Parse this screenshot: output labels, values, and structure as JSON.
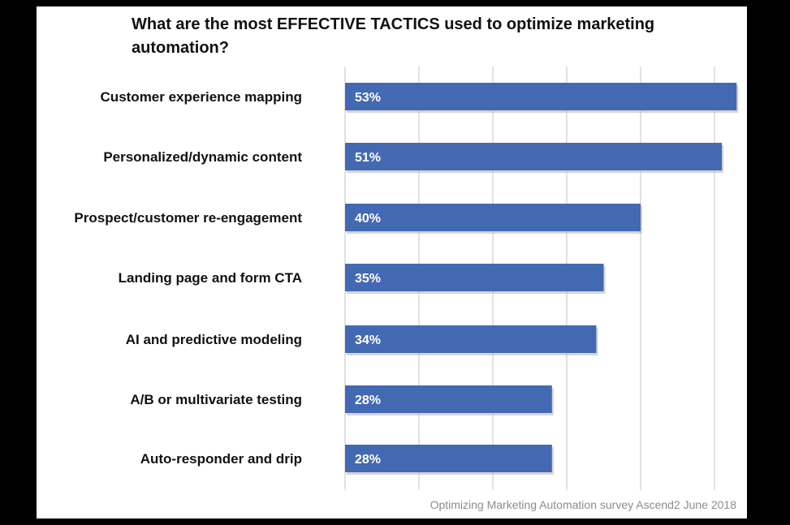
{
  "chart_data": {
    "type": "bar",
    "orientation": "horizontal",
    "title": "What are the most EFFECTIVE TACTICS used to optimize marketing automation?",
    "categories": [
      "Customer experience mapping",
      "Personalized/dynamic content",
      "Prospect/customer re-engagement",
      "Landing page and form CTA",
      "AI and predictive modeling",
      "A/B or multivariate testing",
      "Auto-responder and drip"
    ],
    "values": [
      53,
      51,
      40,
      35,
      34,
      28,
      28
    ],
    "value_labels": [
      "53%",
      "51%",
      "40%",
      "35%",
      "34%",
      "28%",
      "28%"
    ],
    "xlim": [
      0,
      55
    ],
    "grid": true,
    "bar_color": "#4469b3",
    "source": "Optimizing Marketing Automation survey Ascend2 June 2018"
  }
}
